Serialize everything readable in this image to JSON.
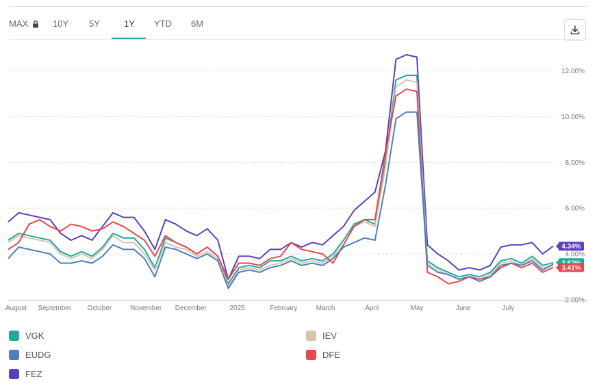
{
  "tabs": [
    {
      "label": "MAX",
      "locked": true
    },
    {
      "label": "10Y"
    },
    {
      "label": "5Y"
    },
    {
      "label": "1Y",
      "active": true
    },
    {
      "label": "YTD"
    },
    {
      "label": "6M"
    }
  ],
  "icons": {
    "lock": "lock-icon",
    "download": "download-icon"
  },
  "colors": {
    "accent": "#27a699",
    "VGK": "#1fa89b",
    "IEV": "#d6c4ad",
    "EUDG": "#4a80bd",
    "DFE": "#e5484d",
    "FEZ": "#5b3fbe"
  },
  "chart_data": {
    "type": "line",
    "title": "",
    "xlabel": "",
    "ylabel": "",
    "y_axis_side": "right",
    "ylim": [
      2.0,
      13.0
    ],
    "y_ticks": [
      "2.00%",
      "4.00%",
      "6.00%",
      "8.00%",
      "10.00%",
      "12.00%"
    ],
    "x_range": [
      "2024-08-01",
      "2025-07-31"
    ],
    "x_ticks": [
      {
        "label": "August",
        "date": "2024-08-01"
      },
      {
        "label": "September",
        "date": "2024-09-01"
      },
      {
        "label": "October",
        "date": "2024-10-01"
      },
      {
        "label": "November",
        "date": "2024-11-01"
      },
      {
        "label": "December",
        "date": "2024-12-01"
      },
      {
        "label": "2025",
        "date": "2025-01-01"
      },
      {
        "label": "February",
        "date": "2025-02-01"
      },
      {
        "label": "March",
        "date": "2025-03-01"
      },
      {
        "label": "April",
        "date": "2025-04-01"
      },
      {
        "label": "May",
        "date": "2025-05-01"
      },
      {
        "label": "June",
        "date": "2025-06-01"
      },
      {
        "label": "July",
        "date": "2025-07-01"
      }
    ],
    "grid": "horizontal dashed",
    "legend_position": "bottom",
    "dates": [
      "2024-08-01",
      "2024-08-08",
      "2024-08-15",
      "2024-08-22",
      "2024-08-29",
      "2024-09-05",
      "2024-09-12",
      "2024-09-19",
      "2024-09-26",
      "2024-10-03",
      "2024-10-10",
      "2024-10-17",
      "2024-10-24",
      "2024-10-31",
      "2024-11-07",
      "2024-11-14",
      "2024-11-21",
      "2024-11-28",
      "2024-12-05",
      "2024-12-12",
      "2024-12-19",
      "2024-12-26",
      "2025-01-02",
      "2025-01-09",
      "2025-01-16",
      "2025-01-23",
      "2025-01-30",
      "2025-02-06",
      "2025-02-13",
      "2025-02-20",
      "2025-02-27",
      "2025-03-06",
      "2025-03-13",
      "2025-03-20",
      "2025-03-27",
      "2025-04-03",
      "2025-04-10",
      "2025-04-17",
      "2025-04-24",
      "2025-05-01",
      "2025-05-08",
      "2025-05-15",
      "2025-05-22",
      "2025-05-29",
      "2025-06-05",
      "2025-06-12",
      "2025-06-19",
      "2025-06-26",
      "2025-07-03",
      "2025-07-10",
      "2025-07-17",
      "2025-07-24",
      "2025-07-31"
    ],
    "series": [
      {
        "name": "FEZ",
        "color": "#5b3fbe",
        "end_label": "4.34%",
        "values": [
          5.4,
          5.8,
          5.7,
          5.6,
          5.5,
          4.9,
          4.6,
          4.8,
          4.6,
          5.2,
          5.8,
          5.6,
          5.6,
          5.0,
          4.2,
          5.5,
          5.3,
          5.0,
          4.8,
          5.1,
          4.6,
          2.9,
          3.9,
          3.9,
          3.8,
          4.2,
          4.2,
          4.5,
          4.3,
          4.5,
          4.4,
          4.8,
          5.2,
          5.9,
          6.3,
          6.7,
          8.5,
          12.5,
          12.7,
          12.6,
          4.4,
          4.0,
          3.7,
          3.3,
          3.4,
          3.3,
          3.5,
          4.3,
          4.4,
          4.4,
          4.5,
          4.0,
          4.34
        ]
      },
      {
        "name": "VGK",
        "color": "#1fa89b",
        "end_label": "3.62%",
        "values": [
          4.6,
          4.9,
          4.8,
          4.7,
          4.6,
          4.1,
          3.9,
          4.1,
          3.9,
          4.3,
          4.9,
          4.7,
          4.7,
          4.2,
          3.4,
          4.7,
          4.5,
          4.3,
          4.0,
          4.3,
          3.9,
          2.7,
          3.4,
          3.5,
          3.4,
          3.7,
          3.7,
          3.9,
          3.7,
          3.8,
          3.7,
          4.0,
          4.6,
          5.3,
          5.5,
          5.3,
          8.0,
          11.6,
          11.8,
          11.8,
          3.7,
          3.4,
          3.2,
          3.0,
          3.1,
          3.0,
          3.2,
          3.7,
          3.8,
          3.6,
          3.9,
          3.5,
          3.62
        ]
      },
      {
        "name": "IEV",
        "color": "#d6c4ad",
        "end_label": "",
        "values": [
          4.5,
          4.8,
          4.7,
          4.6,
          4.5,
          4.0,
          3.8,
          4.0,
          3.8,
          4.2,
          4.8,
          4.5,
          4.5,
          4.0,
          3.3,
          4.5,
          4.3,
          4.2,
          3.9,
          4.1,
          3.8,
          2.6,
          3.3,
          3.4,
          3.3,
          3.5,
          3.6,
          3.8,
          3.6,
          3.7,
          3.6,
          3.9,
          4.4,
          5.2,
          5.4,
          5.2,
          7.8,
          11.3,
          11.6,
          11.5,
          3.6,
          3.3,
          3.1,
          2.9,
          3.0,
          2.9,
          3.1,
          3.6,
          3.7,
          3.5,
          3.8,
          3.4,
          3.5
        ]
      },
      {
        "name": "DFE",
        "color": "#e5484d",
        "end_label": "3.41%",
        "values": [
          4.2,
          4.5,
          5.3,
          5.5,
          5.2,
          5.0,
          5.3,
          5.2,
          5.0,
          5.1,
          5.4,
          5.2,
          4.9,
          4.6,
          3.9,
          4.8,
          4.5,
          4.3,
          4.0,
          4.3,
          3.9,
          2.9,
          3.6,
          3.6,
          3.5,
          3.8,
          3.9,
          4.5,
          4.2,
          4.1,
          4.0,
          3.6,
          4.4,
          5.2,
          5.5,
          5.5,
          8.4,
          10.9,
          11.2,
          11.1,
          3.2,
          3.0,
          2.7,
          2.8,
          3.0,
          2.9,
          3.0,
          3.4,
          3.6,
          3.4,
          3.6,
          3.2,
          3.41
        ]
      },
      {
        "name": "EUDG",
        "color": "#4a80bd",
        "end_label": "",
        "values": [
          3.8,
          4.3,
          4.2,
          4.1,
          4.0,
          3.6,
          3.6,
          3.7,
          3.6,
          3.9,
          4.4,
          4.2,
          4.2,
          3.8,
          3.0,
          4.3,
          4.2,
          4.0,
          3.8,
          4.0,
          3.7,
          2.5,
          3.2,
          3.3,
          3.2,
          3.4,
          3.5,
          3.7,
          3.5,
          3.6,
          3.5,
          3.8,
          4.3,
          4.5,
          4.7,
          4.6,
          7.0,
          9.9,
          10.2,
          10.2,
          3.5,
          3.2,
          3.1,
          2.9,
          3.0,
          2.8,
          3.0,
          3.5,
          3.6,
          3.5,
          3.7,
          3.3,
          3.55
        ]
      }
    ]
  },
  "legend": [
    {
      "name": "VGK",
      "color": "#1fa89b"
    },
    {
      "name": "IEV",
      "color": "#d6c4ad"
    },
    {
      "name": "EUDG",
      "color": "#4a80bd"
    },
    {
      "name": "DFE",
      "color": "#e5484d"
    },
    {
      "name": "FEZ",
      "color": "#5b3fbe"
    }
  ]
}
